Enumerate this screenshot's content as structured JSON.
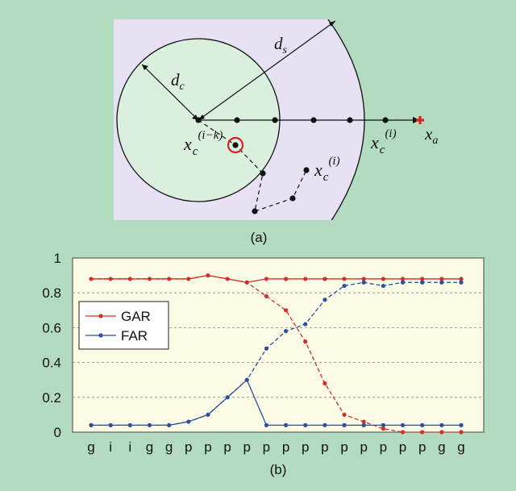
{
  "diagram_a": {
    "caption": "(a)",
    "labels": {
      "d_s": "d",
      "d_s_sub": "s",
      "d_c": "d",
      "d_c_sub": "c",
      "x_a": "x",
      "x_a_sub": "a",
      "xc_ik": "x",
      "xc_ik_sub": "c",
      "xc_ik_sup": "(i−k)",
      "xc_i_right": "x",
      "xc_i_right_sub": "c",
      "xc_i_right_sup": "(i)",
      "xc_i_low": "x",
      "xc_i_low_sub": "c",
      "xc_i_low_sup": "(i)"
    },
    "colors": {
      "panel_bg": "#e7e1f4",
      "inner_circle_fill": "#daefdd",
      "highlight_ring": "#d62020",
      "target_marker": "#d62020"
    }
  },
  "chart_b": {
    "caption": "(b)"
  },
  "chart_data": {
    "type": "line",
    "categories": [
      "g",
      "i",
      "i",
      "g",
      "g",
      "p",
      "p",
      "p",
      "p",
      "p",
      "p",
      "p",
      "p",
      "p",
      "p",
      "p",
      "p",
      "p",
      "g",
      "g"
    ],
    "ylim": [
      0,
      1
    ],
    "yticks": [
      "0",
      "0.2",
      "0.4",
      "0.6",
      "0.8",
      "1"
    ],
    "grid": "horizontal dashed",
    "legend_position": "left",
    "series": [
      {
        "name": "GAR",
        "color": "#d32f2f",
        "values": [
          0.88,
          0.88,
          0.88,
          0.88,
          0.88,
          0.88,
          0.9,
          0.88,
          0.86,
          0.78,
          0.7,
          0.52,
          0.28,
          0.1,
          0.06,
          0.02,
          0.0,
          0.0,
          0.0,
          0.0
        ],
        "solid_values": [
          0.88,
          0.88,
          0.88,
          0.88,
          0.88,
          0.88,
          0.9,
          0.88,
          0.86,
          0.88,
          0.88,
          0.88,
          0.88,
          0.88,
          0.88,
          0.88,
          0.88,
          0.88,
          0.88,
          0.88
        ]
      },
      {
        "name": "FAR",
        "color": "#2d4fa0",
        "values": [
          0.04,
          0.04,
          0.04,
          0.04,
          0.04,
          0.06,
          0.1,
          0.2,
          0.3,
          0.48,
          0.58,
          0.62,
          0.76,
          0.84,
          0.86,
          0.84,
          0.86,
          0.86,
          0.86,
          0.86
        ],
        "solid_values": [
          0.04,
          0.04,
          0.04,
          0.04,
          0.04,
          0.06,
          0.1,
          0.2,
          0.3,
          0.04,
          0.04,
          0.04,
          0.04,
          0.04,
          0.04,
          0.04,
          0.04,
          0.04,
          0.04,
          0.04
        ]
      }
    ]
  }
}
